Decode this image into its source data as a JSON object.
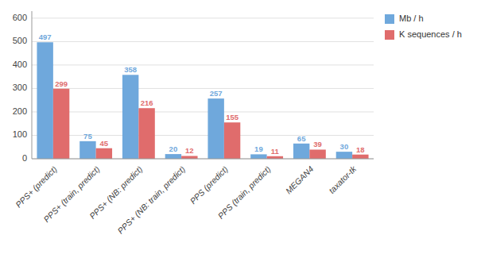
{
  "chart_data": {
    "type": "bar",
    "categories": [
      "PPS+ (predict)",
      "PPS+ (train, predict)",
      "PPS+ (NB: predict)",
      "PPS+ (NB: train, predict)",
      "PPS (predict)",
      "PPS (train, predict)",
      "MEGAN4",
      "taxator-tk"
    ],
    "series": [
      {
        "name": "Mb / h",
        "color": "#6fa8dc",
        "values": [
          497,
          75,
          358,
          20,
          257,
          19,
          65,
          30
        ]
      },
      {
        "name": "K sequences / h",
        "color": "#e06c6c",
        "values": [
          299,
          45,
          216,
          12,
          155,
          11,
          39,
          18
        ]
      }
    ],
    "ylim": [
      0,
      630
    ],
    "yticks": [
      0,
      100,
      200,
      300,
      400,
      500,
      600
    ],
    "grid": true,
    "legend": "upper right",
    "data_labels": true
  }
}
